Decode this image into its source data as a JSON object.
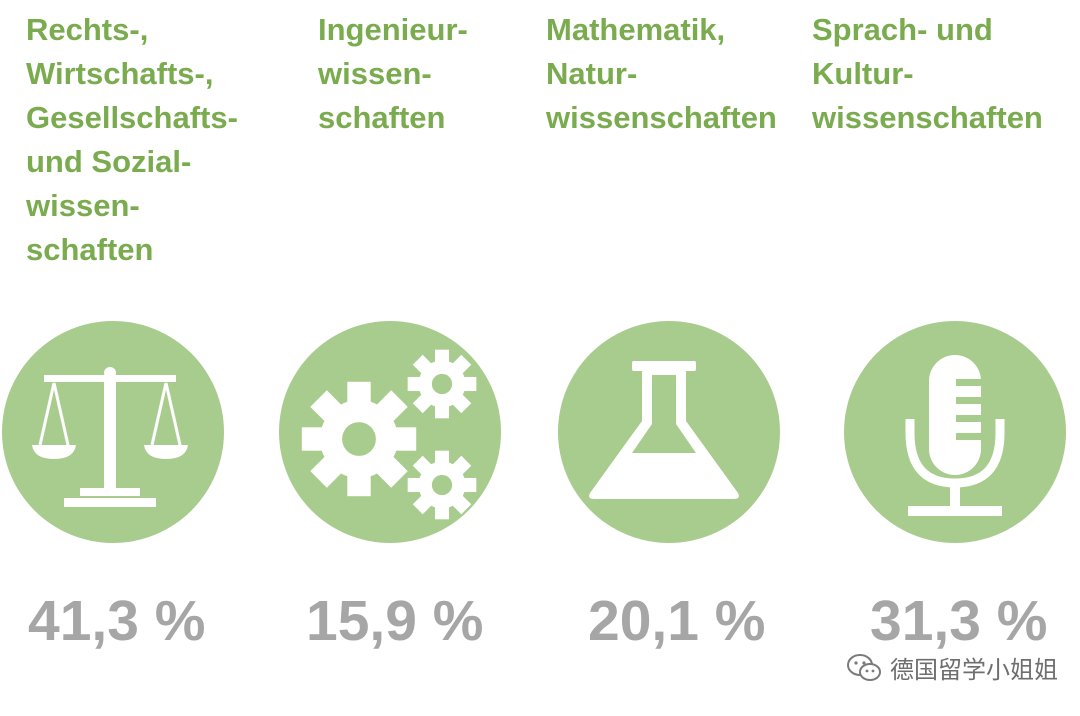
{
  "categories": [
    {
      "title": "Rechts-,\nWirtschafts-,\nGesellschafts-\nund Sozial-\nwissen-\nschaften",
      "percent": "41,3 %",
      "icon": "scales-icon"
    },
    {
      "title": "Ingenieur-\nwissen-\nschaften",
      "percent": "15,9 %",
      "icon": "gears-icon"
    },
    {
      "title": "Mathematik,\nNatur-\nwissenschaften",
      "percent": "20,1 %",
      "icon": "flask-icon"
    },
    {
      "title": "Sprach- und\nKultur-\nwissenschaften",
      "percent": "31,3 %",
      "icon": "microphone-icon"
    }
  ],
  "watermark": {
    "text": "德国留学小姐姐",
    "icon": "wechat-icon"
  },
  "colors": {
    "title_green": "#7aac4f",
    "circle_green": "#a8cc8e",
    "percent_gray": "#a6a6a6"
  }
}
